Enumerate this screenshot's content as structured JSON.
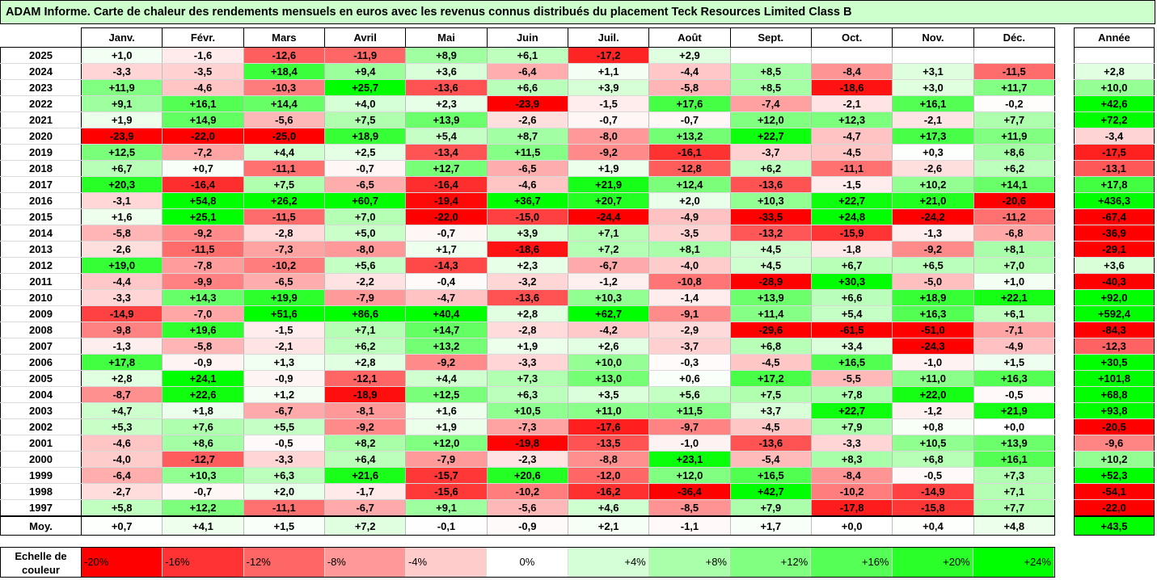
{
  "title": "ADAM Informe. Carte de chaleur des rendements mensuels en euros avec les revenus connus distribués du placement Teck Resources Limited Class B",
  "chart_data": {
    "type": "heatmap",
    "title": "ADAM Informe. Carte de chaleur des rendements mensuels en euros avec les revenus connus distribués du placement Teck Resources Limited Class B",
    "columns": [
      "Janv.",
      "Févr.",
      "Mars",
      "Avril",
      "Mai",
      "Juin",
      "Juil.",
      "Août",
      "Sept.",
      "Oct.",
      "Nov.",
      "Déc."
    ],
    "year_column_label": "Année",
    "rows": [
      {
        "year": "2025",
        "values": [
          "+1,0",
          "-1,6",
          "-12,6",
          "-11,9",
          "+8,9",
          "+6,1",
          "-17,2",
          "+2,9",
          "",
          "",
          "",
          ""
        ],
        "annual": ""
      },
      {
        "year": "2024",
        "values": [
          "-3,3",
          "-3,5",
          "+18,4",
          "+9,4",
          "+3,6",
          "-6,4",
          "+1,1",
          "-4,4",
          "+8,5",
          "-8,4",
          "+3,1",
          "-11,5"
        ],
        "annual": "+2,8"
      },
      {
        "year": "2023",
        "values": [
          "+11,9",
          "-4,6",
          "-10,3",
          "+25,7",
          "-13,6",
          "+6,6",
          "+3,9",
          "-5,8",
          "+8,5",
          "-18,6",
          "+3,0",
          "+11,7"
        ],
        "annual": "+10,0"
      },
      {
        "year": "2022",
        "values": [
          "+9,1",
          "+16,1",
          "+14,4",
          "+4,0",
          "+2,3",
          "-23,9",
          "-1,5",
          "+17,6",
          "-7,4",
          "-2,1",
          "+16,1",
          "-0,2"
        ],
        "annual": "+42,6"
      },
      {
        "year": "2021",
        "values": [
          "+1,9",
          "+14,9",
          "-5,6",
          "+7,5",
          "+13,9",
          "-2,6",
          "-0,7",
          "-0,7",
          "+12,0",
          "+12,3",
          "-2,1",
          "+7,7"
        ],
        "annual": "+72,2"
      },
      {
        "year": "2020",
        "values": [
          "-23,9",
          "-22,0",
          "-25,0",
          "+18,9",
          "+5,4",
          "+8,7",
          "-8,0",
          "+13,2",
          "+22,7",
          "-4,7",
          "+17,3",
          "+11,9"
        ],
        "annual": "-3,4"
      },
      {
        "year": "2019",
        "values": [
          "+12,5",
          "-7,2",
          "+4,4",
          "+2,5",
          "-13,4",
          "+11,5",
          "-9,2",
          "-16,1",
          "-3,7",
          "-4,5",
          "+0,3",
          "+8,6"
        ],
        "annual": "-17,5"
      },
      {
        "year": "2018",
        "values": [
          "+6,7",
          "+0,7",
          "-11,1",
          "-0,7",
          "+12,7",
          "-6,5",
          "+1,9",
          "-12,8",
          "+6,2",
          "-11,1",
          "-2,6",
          "+6,2"
        ],
        "annual": "-13,1"
      },
      {
        "year": "2017",
        "values": [
          "+20,3",
          "-16,4",
          "+7,5",
          "-6,5",
          "-16,4",
          "-4,6",
          "+21,9",
          "+12,4",
          "-13,6",
          "-1,5",
          "+10,2",
          "+14,1"
        ],
        "annual": "+17,8"
      },
      {
        "year": "2016",
        "values": [
          "-3,1",
          "+54,8",
          "+26,2",
          "+60,7",
          "-19,4",
          "+36,7",
          "+20,7",
          "+2,0",
          "+10,3",
          "+22,7",
          "+21,0",
          "-20,6"
        ],
        "annual": "+436,3"
      },
      {
        "year": "2015",
        "values": [
          "+1,6",
          "+25,1",
          "-11,5",
          "+7,0",
          "-22,0",
          "-15,0",
          "-24,4",
          "-4,9",
          "-33,5",
          "+24,8",
          "-24,2",
          "-11,2"
        ],
        "annual": "-67,4"
      },
      {
        "year": "2014",
        "values": [
          "-5,8",
          "-9,2",
          "-2,8",
          "+5,0",
          "-0,7",
          "+3,9",
          "+7,1",
          "-3,5",
          "-13,2",
          "-15,9",
          "-1,3",
          "-6,8"
        ],
        "annual": "-36,9"
      },
      {
        "year": "2013",
        "values": [
          "-2,6",
          "-11,5",
          "-7,3",
          "-8,0",
          "+1,7",
          "-18,6",
          "+7,2",
          "+8,1",
          "+4,5",
          "-1,8",
          "-9,2",
          "+8,1"
        ],
        "annual": "-29,1"
      },
      {
        "year": "2012",
        "values": [
          "+19,0",
          "-7,8",
          "-10,2",
          "+5,6",
          "-14,3",
          "+2,3",
          "-6,7",
          "-4,0",
          "+4,5",
          "+6,7",
          "+6,5",
          "+7,0"
        ],
        "annual": "+3,6"
      },
      {
        "year": "2011",
        "values": [
          "-4,4",
          "-9,9",
          "-6,5",
          "-2,2",
          "-0,4",
          "-3,2",
          "-1,2",
          "-10,8",
          "-28,9",
          "+30,3",
          "-5,0",
          "+1,0"
        ],
        "annual": "-40,3"
      },
      {
        "year": "2010",
        "values": [
          "-3,3",
          "+14,3",
          "+19,9",
          "-7,9",
          "-4,7",
          "-13,6",
          "+10,3",
          "-1,4",
          "+13,9",
          "+6,6",
          "+18,9",
          "+22,1"
        ],
        "annual": "+92,0"
      },
      {
        "year": "2009",
        "values": [
          "-14,9",
          "-7,0",
          "+51,6",
          "+86,6",
          "+40,4",
          "+2,8",
          "+62,7",
          "-9,1",
          "+11,4",
          "+5,4",
          "+16,3",
          "+6,1"
        ],
        "annual": "+592,4"
      },
      {
        "year": "2008",
        "values": [
          "-9,8",
          "+19,6",
          "-1,5",
          "+7,1",
          "+14,7",
          "-2,8",
          "-4,2",
          "-2,9",
          "-29,6",
          "-61,5",
          "-51,0",
          "-7,1"
        ],
        "annual": "-84,3"
      },
      {
        "year": "2007",
        "values": [
          "-1,3",
          "-5,8",
          "-2,1",
          "+6,2",
          "+13,2",
          "+1,9",
          "+2,6",
          "-3,7",
          "+6,8",
          "+3,4",
          "-24,3",
          "-4,9"
        ],
        "annual": "-12,3"
      },
      {
        "year": "2006",
        "values": [
          "+17,8",
          "-0,9",
          "+1,3",
          "+2,8",
          "-9,2",
          "-3,3",
          "+10,0",
          "-0,3",
          "-4,5",
          "+16,5",
          "-1,0",
          "+1,5"
        ],
        "annual": "+30,5"
      },
      {
        "year": "2005",
        "values": [
          "+2,8",
          "+24,1",
          "-0,9",
          "-12,1",
          "+4,4",
          "+7,3",
          "+13,0",
          "+0,6",
          "+17,2",
          "-5,5",
          "+11,0",
          "+16,3"
        ],
        "annual": "+101,8"
      },
      {
        "year": "2004",
        "values": [
          "-8,7",
          "+22,6",
          "+1,2",
          "-18,9",
          "+12,5",
          "+6,3",
          "+3,5",
          "+5,6",
          "+7,5",
          "+7,8",
          "+22,0",
          "-0,5"
        ],
        "annual": "+68,8"
      },
      {
        "year": "2003",
        "values": [
          "+4,7",
          "+1,8",
          "-6,7",
          "-8,1",
          "+1,6",
          "+10,5",
          "+11,0",
          "+11,5",
          "+3,7",
          "+22,7",
          "-1,2",
          "+21,9"
        ],
        "annual": "+93,8"
      },
      {
        "year": "2002",
        "values": [
          "+5,3",
          "+7,6",
          "+5,5",
          "-9,2",
          "+1,9",
          "-7,3",
          "-17,6",
          "-9,7",
          "-4,5",
          "+7,9",
          "+0,8",
          "+0,0"
        ],
        "annual": "-20,5"
      },
      {
        "year": "2001",
        "values": [
          "-4,6",
          "+8,6",
          "-0,5",
          "+8,2",
          "+12,0",
          "-19,8",
          "-13,5",
          "-1,0",
          "-13,6",
          "-3,3",
          "+10,5",
          "+13,9"
        ],
        "annual": "-9,6"
      },
      {
        "year": "2000",
        "values": [
          "-4,0",
          "-12,7",
          "-3,3",
          "+6,4",
          "-7,9",
          "-2,3",
          "-8,8",
          "+23,1",
          "-5,4",
          "+8,3",
          "+6,8",
          "+16,1"
        ],
        "annual": "+10,2"
      },
      {
        "year": "1999",
        "values": [
          "-6,4",
          "+10,3",
          "+6,3",
          "+21,6",
          "-15,7",
          "+20,6",
          "-12,0",
          "+12,0",
          "+16,5",
          "-8,4",
          "-0,5",
          "+7,3"
        ],
        "annual": "+52,3"
      },
      {
        "year": "1998",
        "values": [
          "-2,7",
          "-0,7",
          "+2,0",
          "-1,7",
          "-15,6",
          "-10,2",
          "-16,2",
          "-36,4",
          "+42,7",
          "-10,2",
          "-14,9",
          "+7,1"
        ],
        "annual": "-54,1"
      },
      {
        "year": "1997",
        "values": [
          "+5,8",
          "+12,2",
          "-11,1",
          "-6,7",
          "+9,1",
          "-5,6",
          "+4,6",
          "-8,5",
          "+7,9",
          "-17,8",
          "-15,8",
          "+7,7"
        ],
        "annual": "-22,0"
      }
    ],
    "average_label": "Moy.",
    "averages": [
      "+0,7",
      "+4,1",
      "+1,5",
      "+7,2",
      "-0,1",
      "-0,9",
      "+2,1",
      "-1,1",
      "+1,7",
      "+0,0",
      "+0,4",
      "+4,8"
    ],
    "average_annual": "+43,5",
    "color_scale": {
      "min": -20,
      "max": 24,
      "negative_color": "#ff0000",
      "neutral_color": "#ffffff",
      "positive_color": "#00ff00"
    }
  },
  "legend": {
    "label": "Echelle de couleur",
    "steps": [
      {
        "text": "-20%",
        "value": -20
      },
      {
        "text": "-16%",
        "value": -16
      },
      {
        "text": "-12%",
        "value": -12
      },
      {
        "text": "-8%",
        "value": -8
      },
      {
        "text": "-4%",
        "value": -4
      },
      {
        "text": "0%",
        "value": 0
      },
      {
        "text": "+4%",
        "value": 4
      },
      {
        "text": "+8%",
        "value": 8
      },
      {
        "text": "+12%",
        "value": 12
      },
      {
        "text": "+16%",
        "value": 16
      },
      {
        "text": "+20%",
        "value": 20
      },
      {
        "text": "+24%",
        "value": 24
      }
    ]
  }
}
